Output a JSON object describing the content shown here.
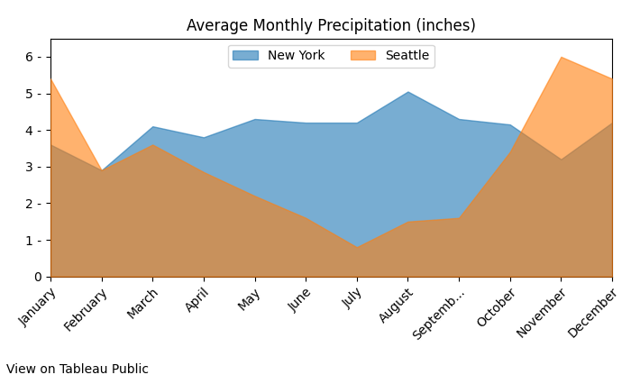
{
  "chart_data": {
    "type": "area",
    "title": "Average Monthly Precipitation (inches)",
    "categories": [
      "January",
      "February",
      "March",
      "April",
      "May",
      "June",
      "July",
      "August",
      "Septemb...",
      "October",
      "November",
      "December"
    ],
    "series": [
      {
        "name": "New York",
        "values": [
          3.6,
          2.9,
          4.1,
          3.8,
          4.3,
          4.2,
          4.2,
          5.05,
          4.3,
          4.15,
          3.2,
          4.2
        ]
      },
      {
        "name": "Seattle",
        "values": [
          5.4,
          2.9,
          3.6,
          2.85,
          2.2,
          1.6,
          0.8,
          1.5,
          1.6,
          3.4,
          6.0,
          5.4
        ]
      }
    ],
    "stacked": false,
    "ylim": [
      0,
      6.5
    ],
    "yticks": [
      0,
      {
        "value": 1,
        "label": "1 -"
      },
      {
        "value": 2,
        "label": "2 -"
      },
      {
        "value": 3,
        "label": "3 -"
      },
      {
        "value": 4,
        "label": "4 -"
      },
      {
        "value": 5,
        "label": "5 -"
      },
      {
        "value": 6,
        "label": "6 -"
      }
    ],
    "grid": false,
    "legend": "upper center",
    "annotations": [
      "View on Tableau Public"
    ]
  }
}
